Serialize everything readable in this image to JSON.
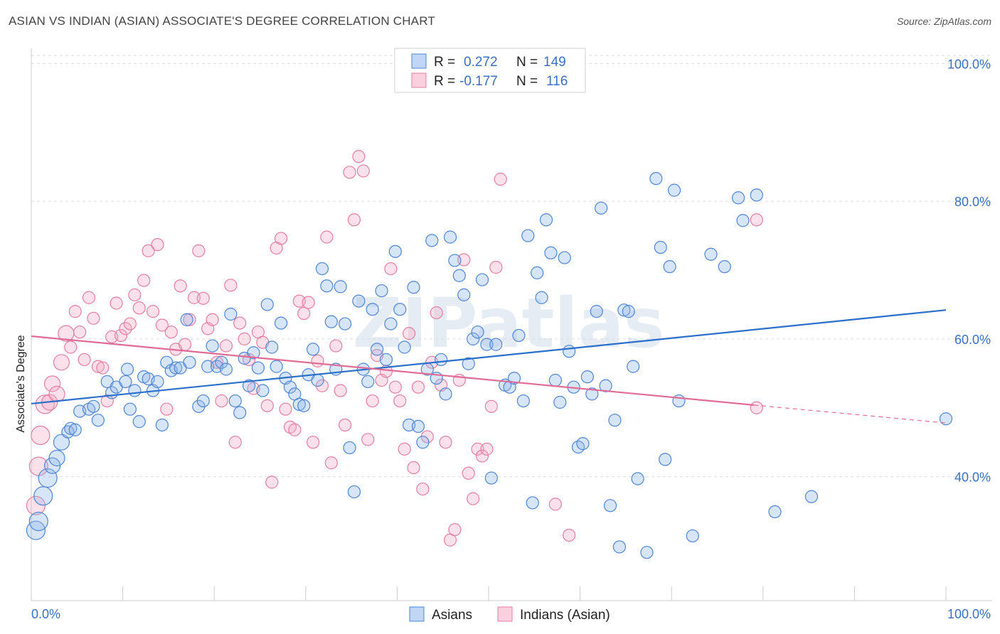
{
  "title": "ASIAN VS INDIAN (ASIAN) ASSOCIATE'S DEGREE CORRELATION CHART",
  "source": "Source: ZipAtlas.com",
  "watermark": "ZIPatlas",
  "colors": {
    "asians_fill": "rgba(140,180,235,0.35)",
    "asians_stroke": "#4f86d3",
    "asians_line": "#2a6fcb",
    "indians_fill": "rgba(245,170,195,0.35)",
    "indians_stroke": "#e27fa2",
    "indians_line": "#e06c96",
    "grid": "#dddddd",
    "tick_text": "#3a6fc4"
  },
  "legend": {
    "r_label": "R =",
    "n_label": "N =",
    "rows": [
      {
        "r": "0.272",
        "n": "149"
      },
      {
        "r": "-0.177",
        "n": "116"
      }
    ]
  },
  "chart_data": {
    "type": "scatter",
    "title": "ASIAN VS INDIAN (ASIAN) ASSOCIATE'S DEGREE CORRELATION CHART",
    "xlabel": "",
    "ylabel": "Associate's Degree",
    "xlim": [
      0,
      100
    ],
    "ylim": [
      22,
      102
    ],
    "x_tick_labels": [
      "0.0%",
      "100.0%"
    ],
    "y_ticks": [
      40,
      60,
      80,
      100
    ],
    "y_tick_labels": [
      "40.0%",
      "60.0%",
      "80.0%",
      "100.0%"
    ],
    "grid": true,
    "legend_position": "top-center",
    "series": [
      {
        "name": "Asians",
        "trend": {
          "x": [
            0,
            100
          ],
          "y": [
            50.6,
            64.2
          ]
        },
        "points": [
          [
            0.5,
            32.2
          ],
          [
            0.8,
            33.5
          ],
          [
            1.3,
            37.2
          ],
          [
            1.8,
            39.8
          ],
          [
            2.3,
            41.6
          ],
          [
            2.8,
            42.7
          ],
          [
            3.3,
            45.0
          ],
          [
            4.0,
            46.5
          ],
          [
            4.3,
            47.0
          ],
          [
            4.8,
            46.8
          ],
          [
            5.3,
            49.5
          ],
          [
            6.3,
            49.8
          ],
          [
            6.8,
            50.2
          ],
          [
            7.3,
            48.2
          ],
          [
            8.3,
            53.8
          ],
          [
            8.8,
            52.2
          ],
          [
            9.3,
            53.0
          ],
          [
            10.3,
            53.8
          ],
          [
            10.5,
            55.6
          ],
          [
            10.8,
            49.8
          ],
          [
            11.3,
            52.5
          ],
          [
            11.8,
            48.0
          ],
          [
            12.3,
            54.5
          ],
          [
            12.8,
            54.2
          ],
          [
            13.3,
            52.5
          ],
          [
            13.8,
            53.8
          ],
          [
            14.3,
            47.5
          ],
          [
            14.8,
            56.6
          ],
          [
            15.3,
            55.4
          ],
          [
            15.8,
            55.8
          ],
          [
            16.3,
            55.8
          ],
          [
            17.0,
            62.8
          ],
          [
            17.3,
            56.6
          ],
          [
            18.3,
            50.2
          ],
          [
            18.8,
            51.0
          ],
          [
            19.3,
            56.0
          ],
          [
            19.8,
            59.0
          ],
          [
            20.3,
            56.0
          ],
          [
            20.8,
            56.6
          ],
          [
            21.3,
            55.6
          ],
          [
            21.8,
            63.6
          ],
          [
            22.3,
            51.0
          ],
          [
            22.8,
            49.3
          ],
          [
            23.3,
            57.2
          ],
          [
            23.8,
            53.2
          ],
          [
            24.3,
            58.0
          ],
          [
            24.8,
            55.8
          ],
          [
            25.3,
            52.5
          ],
          [
            25.8,
            65.0
          ],
          [
            26.3,
            58.8
          ],
          [
            26.8,
            56.0
          ],
          [
            27.3,
            62.3
          ],
          [
            27.8,
            54.3
          ],
          [
            28.3,
            53.0
          ],
          [
            28.8,
            52.0
          ],
          [
            29.3,
            50.5
          ],
          [
            29.8,
            50.3
          ],
          [
            30.3,
            54.8
          ],
          [
            30.8,
            58.5
          ],
          [
            31.3,
            54.0
          ],
          [
            31.8,
            70.2
          ],
          [
            32.3,
            67.7
          ],
          [
            32.8,
            62.5
          ],
          [
            33.3,
            55.6
          ],
          [
            33.8,
            67.6
          ],
          [
            34.3,
            62.2
          ],
          [
            34.8,
            44.2
          ],
          [
            35.3,
            37.8
          ],
          [
            35.8,
            65.5
          ],
          [
            36.3,
            55.6
          ],
          [
            36.8,
            53.8
          ],
          [
            37.3,
            64.3
          ],
          [
            37.8,
            58.5
          ],
          [
            38.3,
            67.0
          ],
          [
            38.8,
            57.0
          ],
          [
            39.3,
            62.2
          ],
          [
            39.8,
            72.7
          ],
          [
            40.3,
            64.3
          ],
          [
            40.8,
            58.8
          ],
          [
            41.3,
            47.5
          ],
          [
            41.8,
            67.5
          ],
          [
            42.3,
            47.3
          ],
          [
            42.8,
            45.0
          ],
          [
            43.3,
            55.6
          ],
          [
            43.8,
            74.3
          ],
          [
            44.3,
            54.3
          ],
          [
            44.8,
            57.0
          ],
          [
            45.3,
            52.0
          ],
          [
            45.8,
            74.8
          ],
          [
            46.3,
            71.4
          ],
          [
            46.8,
            69.2
          ],
          [
            47.3,
            66.4
          ],
          [
            47.8,
            56.4
          ],
          [
            48.3,
            60.0
          ],
          [
            48.8,
            61.0
          ],
          [
            49.3,
            68.6
          ],
          [
            49.8,
            59.2
          ],
          [
            50.3,
            39.8
          ],
          [
            50.8,
            59.2
          ],
          [
            51.8,
            53.3
          ],
          [
            52.3,
            53.0
          ],
          [
            52.8,
            54.3
          ],
          [
            53.3,
            60.5
          ],
          [
            53.8,
            51.0
          ],
          [
            54.3,
            75.0
          ],
          [
            54.8,
            36.2
          ],
          [
            55.3,
            69.6
          ],
          [
            55.8,
            66.0
          ],
          [
            56.3,
            77.3
          ],
          [
            56.8,
            72.5
          ],
          [
            57.3,
            54.0
          ],
          [
            57.8,
            50.8
          ],
          [
            58.3,
            71.8
          ],
          [
            58.8,
            58.2
          ],
          [
            59.3,
            53.0
          ],
          [
            59.8,
            44.3
          ],
          [
            60.3,
            44.8
          ],
          [
            60.8,
            54.5
          ],
          [
            61.3,
            52.0
          ],
          [
            61.8,
            64.0
          ],
          [
            62.3,
            79.0
          ],
          [
            62.8,
            53.2
          ],
          [
            63.3,
            35.8
          ],
          [
            63.8,
            48.2
          ],
          [
            64.3,
            29.8
          ],
          [
            64.8,
            64.2
          ],
          [
            65.3,
            64.0
          ],
          [
            65.8,
            56.0
          ],
          [
            66.3,
            39.7
          ],
          [
            67.3,
            29.0
          ],
          [
            68.3,
            83.3
          ],
          [
            68.8,
            73.3
          ],
          [
            69.3,
            42.5
          ],
          [
            69.8,
            70.5
          ],
          [
            70.3,
            81.6
          ],
          [
            70.8,
            51.0
          ],
          [
            72.3,
            31.4
          ],
          [
            74.3,
            72.3
          ],
          [
            75.8,
            70.5
          ],
          [
            77.3,
            80.5
          ],
          [
            77.8,
            77.2
          ],
          [
            79.3,
            80.9
          ],
          [
            81.3,
            34.9
          ],
          [
            85.3,
            37.1
          ],
          [
            100,
            48.4
          ]
        ],
        "sizes_note": "points near x=0 drawn larger"
      },
      {
        "name": "Indians (Asian)",
        "trend": {
          "x": [
            0,
            79
          ],
          "y": [
            60.4,
            50.4
          ]
        },
        "trend_dashed_extension": {
          "x": [
            79,
            100
          ],
          "y": [
            50.4,
            47.8
          ]
        },
        "points": [
          [
            0.5,
            35.8
          ],
          [
            0.8,
            41.5
          ],
          [
            1.0,
            46.0
          ],
          [
            1.5,
            50.5
          ],
          [
            2.0,
            50.8
          ],
          [
            2.3,
            53.5
          ],
          [
            2.8,
            52.0
          ],
          [
            3.3,
            56.6
          ],
          [
            3.8,
            60.8
          ],
          [
            4.3,
            58.8
          ],
          [
            4.8,
            64.0
          ],
          [
            5.3,
            61.0
          ],
          [
            5.8,
            57.0
          ],
          [
            6.3,
            66.0
          ],
          [
            6.8,
            63.0
          ],
          [
            7.3,
            56.0
          ],
          [
            7.8,
            55.8
          ],
          [
            8.3,
            51.0
          ],
          [
            8.8,
            60.3
          ],
          [
            9.3,
            65.2
          ],
          [
            9.8,
            60.5
          ],
          [
            10.3,
            61.5
          ],
          [
            10.8,
            62.2
          ],
          [
            11.3,
            66.4
          ],
          [
            11.8,
            64.5
          ],
          [
            12.3,
            68.5
          ],
          [
            12.8,
            72.8
          ],
          [
            13.3,
            64.0
          ],
          [
            13.8,
            73.7
          ],
          [
            14.3,
            62.0
          ],
          [
            14.8,
            49.8
          ],
          [
            15.3,
            61.0
          ],
          [
            15.8,
            58.5
          ],
          [
            16.3,
            67.7
          ],
          [
            16.8,
            59.2
          ],
          [
            17.3,
            62.8
          ],
          [
            17.8,
            66.0
          ],
          [
            18.3,
            72.8
          ],
          [
            18.8,
            65.9
          ],
          [
            19.3,
            61.5
          ],
          [
            19.8,
            62.8
          ],
          [
            20.3,
            56.6
          ],
          [
            20.8,
            51.0
          ],
          [
            21.3,
            59.0
          ],
          [
            21.8,
            67.8
          ],
          [
            22.3,
            45.0
          ],
          [
            22.8,
            62.3
          ],
          [
            23.3,
            60.0
          ],
          [
            23.8,
            57.0
          ],
          [
            24.3,
            52.8
          ],
          [
            24.8,
            61.0
          ],
          [
            25.3,
            59.5
          ],
          [
            25.8,
            50.3
          ],
          [
            26.3,
            39.2
          ],
          [
            26.8,
            73.2
          ],
          [
            27.3,
            74.6
          ],
          [
            27.8,
            49.8
          ],
          [
            28.3,
            47.2
          ],
          [
            28.8,
            46.8
          ],
          [
            29.3,
            65.5
          ],
          [
            29.8,
            63.7
          ],
          [
            30.3,
            65.3
          ],
          [
            30.8,
            45.0
          ],
          [
            31.3,
            56.8
          ],
          [
            31.8,
            53.2
          ],
          [
            32.3,
            74.8
          ],
          [
            32.8,
            42.0
          ],
          [
            33.3,
            59.0
          ],
          [
            33.8,
            52.5
          ],
          [
            34.3,
            47.5
          ],
          [
            34.8,
            84.2
          ],
          [
            35.3,
            77.3
          ],
          [
            35.8,
            86.5
          ],
          [
            36.3,
            84.4
          ],
          [
            36.8,
            45.4
          ],
          [
            37.3,
            51.0
          ],
          [
            37.8,
            57.6
          ],
          [
            38.3,
            54.0
          ],
          [
            38.8,
            55.3
          ],
          [
            39.3,
            70.2
          ],
          [
            39.8,
            53.0
          ],
          [
            40.3,
            51.0
          ],
          [
            40.8,
            44.0
          ],
          [
            41.3,
            60.8
          ],
          [
            41.8,
            41.3
          ],
          [
            42.3,
            53.0
          ],
          [
            42.8,
            38.2
          ],
          [
            43.3,
            45.8
          ],
          [
            43.8,
            56.6
          ],
          [
            44.3,
            63.8
          ],
          [
            44.8,
            53.3
          ],
          [
            45.3,
            45.0
          ],
          [
            45.8,
            30.8
          ],
          [
            46.3,
            32.3
          ],
          [
            46.8,
            54.0
          ],
          [
            47.3,
            71.5
          ],
          [
            47.8,
            40.5
          ],
          [
            48.3,
            36.8
          ],
          [
            48.8,
            44.0
          ],
          [
            49.3,
            43.0
          ],
          [
            49.8,
            44.0
          ],
          [
            50.3,
            50.2
          ],
          [
            50.8,
            70.4
          ],
          [
            51.3,
            83.2
          ],
          [
            57.3,
            36.0
          ],
          [
            58.8,
            31.5
          ],
          [
            79.3,
            77.3
          ],
          [
            79.3,
            50.0
          ]
        ]
      }
    ]
  },
  "bottom_legend": [
    "Asians",
    "Indians (Asian)"
  ]
}
